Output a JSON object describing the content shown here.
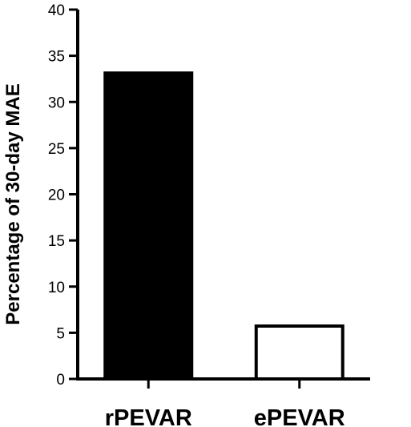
{
  "chart_data": {
    "type": "bar",
    "categories": [
      "rPEVAR",
      "ePEVAR"
    ],
    "values": [
      33.3,
      5.9
    ],
    "ylabel": "Percentage of 30-day MAE",
    "xlabel": "",
    "ylim": [
      0,
      40
    ],
    "yticks": [
      "0",
      "5",
      "10",
      "15",
      "20",
      "25",
      "30",
      "35",
      "40"
    ],
    "grid": false,
    "legend": "none",
    "bar_fills": [
      "#000000",
      "#ffffff"
    ],
    "bar_stroke": "#000000"
  }
}
